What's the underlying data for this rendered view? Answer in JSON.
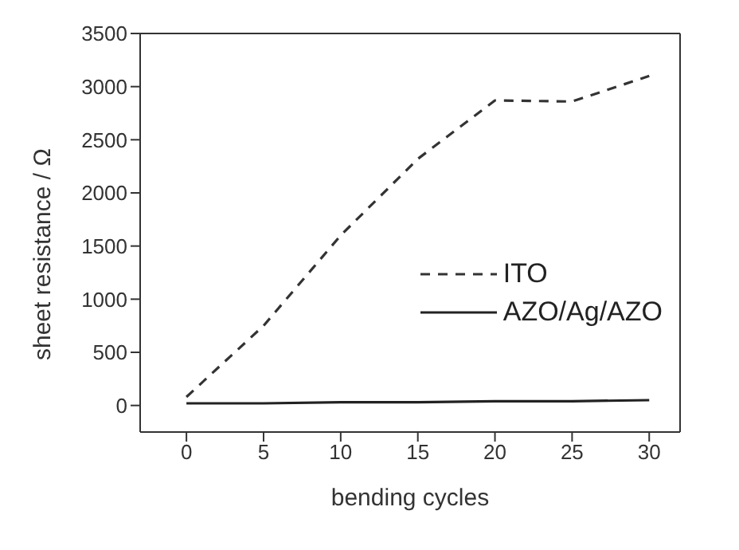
{
  "chart_data": {
    "type": "line",
    "xlabel": "bending cycles",
    "ylabel": "sheet resistance / Ω",
    "x": [
      0,
      5,
      10,
      15,
      20,
      25,
      30
    ],
    "series": [
      {
        "name": "ITO",
        "color": "#333333",
        "line_style": "dashed",
        "values": [
          80,
          750,
          1600,
          2320,
          2870,
          2860,
          3100
        ]
      },
      {
        "name": "AZO/Ag/AZO",
        "color": "#222222",
        "line_style": "solid",
        "values": [
          20,
          20,
          30,
          30,
          40,
          40,
          50
        ]
      }
    ],
    "xlim": [
      -3,
      32
    ],
    "xticks": [
      0,
      5,
      10,
      15,
      20,
      25,
      30
    ],
    "ylim": [
      -250,
      3500
    ],
    "yticks": [
      0,
      500,
      1000,
      1500,
      2000,
      2500,
      3000,
      3500
    ],
    "grid": false,
    "legend": "right",
    "marker": "none"
  }
}
